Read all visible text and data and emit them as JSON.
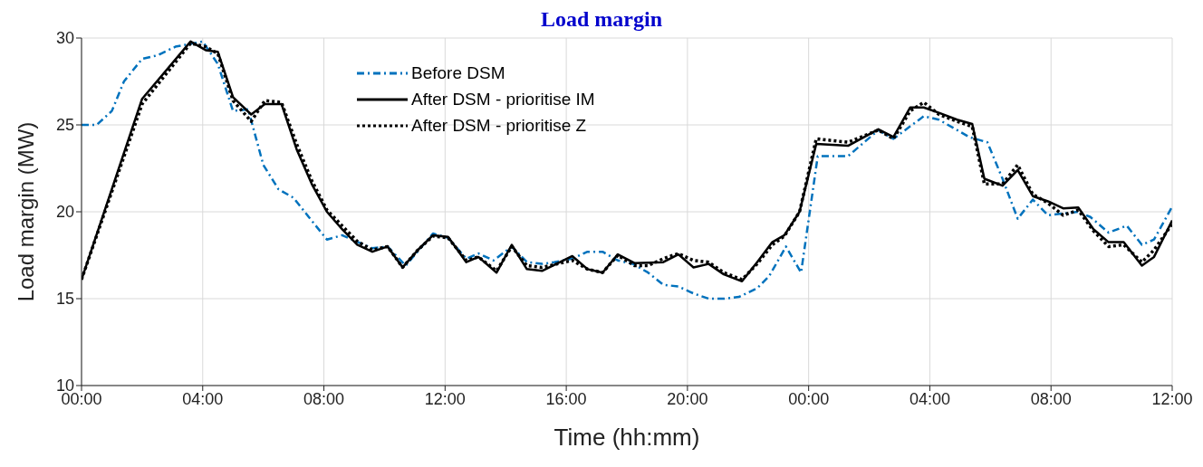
{
  "chart_data": {
    "type": "line",
    "title": "Load margin",
    "xlabel": "Time (hh:mm)",
    "ylabel": "Load margin (MW)",
    "xlim": [
      "--01-01T00:00",
      "--01-02T12:00"
    ],
    "xticks": [
      {
        "value": "--01-01T00:00",
        "label": "00:00"
      },
      {
        "value": "--01-01T04:00",
        "label": "04:00"
      },
      {
        "value": "--01-01T08:00",
        "label": "08:00"
      },
      {
        "value": "--01-01T12:00",
        "label": "12:00"
      },
      {
        "value": "--01-01T16:00",
        "label": "16:00"
      },
      {
        "value": "--01-01T20:00",
        "label": "20:00"
      },
      {
        "value": "--01-02T00:00",
        "label": "00:00"
      },
      {
        "value": "--01-02T04:00",
        "label": "04:00"
      },
      {
        "value": "--01-02T08:00",
        "label": "08:00"
      },
      {
        "value": "--01-02T12:00",
        "label": "12:00"
      }
    ],
    "ylim": [
      10,
      30
    ],
    "yticks": [
      10,
      15,
      20,
      25,
      30
    ],
    "grid": true,
    "legend": "top",
    "marker": "none",
    "series": [
      {
        "name": "Before DSM",
        "color": "#0072bd",
        "line_style": "dashed",
        "x": [
          "--01-01T00:00",
          "--01-01T00:30",
          "--01-01T01:00",
          "--01-01T01:24",
          "--01-01T02:00",
          "--01-01T02:30",
          "--01-01T03:06",
          "--01-01T04:00",
          "--01-01T04:30",
          "--01-01T05:00",
          "--01-01T05:30",
          "--01-01T06:00",
          "--01-01T06:30",
          "--01-01T07:00",
          "--01-01T07:30",
          "--01-01T08:06",
          "--01-01T08:36",
          "--01-01T09:12",
          "--01-01T09:36",
          "--01-01T10:06",
          "--01-01T10:42",
          "--01-01T11:36",
          "--01-01T12:06",
          "--01-01T12:42",
          "--01-01T13:06",
          "--01-01T13:36",
          "--01-01T14:12",
          "--01-01T14:42",
          "--01-01T15:12",
          "--01-01T15:36",
          "--01-01T16:12",
          "--01-01T16:42",
          "--01-01T17:12",
          "--01-01T17:42",
          "--01-01T18:12",
          "--01-01T18:42",
          "--01-01T19:12",
          "--01-01T19:42",
          "--01-01T20:12",
          "--01-01T20:42",
          "--01-01T21:12",
          "--01-01T21:42",
          "--01-01T22:18",
          "--01-01T22:42",
          "--01-01T23:15",
          "--01-01T23:45",
          "--01-02T00:18",
          "--01-02T01:18",
          "--01-02T02:18",
          "--01-02T02:48",
          "--01-02T03:48",
          "--01-02T04:18",
          "--01-02T05:18",
          "--01-02T05:54",
          "--01-02T06:24",
          "--01-02T06:54",
          "--01-02T07:24",
          "--01-02T07:54",
          "--01-02T08:54",
          "--01-02T09:18",
          "--01-02T09:54",
          "--01-02T10:30",
          "--01-02T11:00",
          "--01-02T11:24",
          "--01-02T12:00"
        ],
        "values": [
          25,
          25,
          25.8,
          27.5,
          28.8,
          29,
          29.5,
          29.8,
          28.5,
          25.8,
          25.9,
          22.7,
          21.3,
          20.8,
          19.7,
          18.4,
          18.65,
          18.2,
          17.9,
          18,
          16.9,
          18.75,
          18.5,
          17.3,
          17.6,
          17.2,
          18,
          17.1,
          17,
          17.1,
          17.3,
          17.7,
          17.7,
          17.2,
          17,
          16.5,
          15.8,
          15.7,
          15.3,
          15,
          15,
          15.1,
          15.6,
          16.3,
          18,
          16.5,
          23.2,
          23.2,
          24.7,
          24.2,
          25.5,
          25.3,
          24.3,
          24,
          21.9,
          19.6,
          20.7,
          19.8,
          20,
          19.7,
          18.8,
          19.2,
          18.1,
          18.4,
          20.3
        ]
      },
      {
        "name": "After DSM - prioritise IM",
        "color": "#000000",
        "line_style": "solid",
        "x": [
          "--01-01T00:00",
          "--01-01T02:00",
          "--01-01T03:36",
          "--01-01T04:06",
          "--01-01T04:30",
          "--01-01T05:00",
          "--01-01T05:36",
          "--01-01T06:03",
          "--01-01T06:36",
          "--01-01T07:06",
          "--01-01T07:36",
          "--01-01T08:06",
          "--01-01T08:36",
          "--01-01T09:06",
          "--01-01T09:36",
          "--01-01T10:06",
          "--01-01T10:36",
          "--01-01T11:06",
          "--01-01T11:36",
          "--01-01T12:06",
          "--01-01T12:42",
          "--01-01T13:06",
          "--01-01T13:42",
          "--01-01T14:12",
          "--01-01T14:42",
          "--01-01T15:12",
          "--01-01T16:12",
          "--01-01T16:42",
          "--01-01T17:12",
          "--01-01T17:42",
          "--01-01T18:15",
          "--01-01T19:12",
          "--01-01T19:42",
          "--01-01T20:12",
          "--01-01T20:42",
          "--01-01T21:12",
          "--01-01T21:48",
          "--01-01T22:18",
          "--01-01T22:48",
          "--01-01T23:12",
          "--01-01T23:42",
          "--01-02T00:15",
          "--01-02T01:18",
          "--01-02T02:18",
          "--01-02T02:48",
          "--01-02T03:21",
          "--01-02T03:48",
          "--01-02T04:18",
          "--01-02T04:54",
          "--01-02T05:24",
          "--01-02T05:48",
          "--01-02T06:24",
          "--01-02T06:54",
          "--01-02T07:24",
          "--01-02T07:54",
          "--01-02T08:24",
          "--01-02T08:54",
          "--01-02T09:24",
          "--01-02T09:54",
          "--01-02T10:24",
          "--01-02T11:00",
          "--01-02T11:24",
          "--01-02T12:00"
        ],
        "values": [
          16.1,
          26.5,
          29.8,
          29.3,
          29.2,
          26.6,
          25.6,
          26.2,
          26.2,
          23.6,
          21.6,
          20,
          19,
          18.1,
          17.7,
          18,
          16.8,
          17.8,
          18.65,
          18.55,
          17.1,
          17.4,
          16.5,
          18.1,
          16.7,
          16.6,
          17.45,
          16.7,
          16.5,
          17.55,
          17.05,
          17.1,
          17.55,
          16.8,
          17,
          16.4,
          16,
          17.1,
          18.25,
          18.65,
          20,
          23.9,
          23.8,
          24.75,
          24.3,
          26,
          26,
          25.7,
          25.3,
          25.05,
          21.9,
          21.5,
          22.4,
          20.9,
          20.6,
          20.2,
          20.25,
          19,
          18.25,
          18.25,
          16.9,
          17.4,
          19.5
        ]
      },
      {
        "name": "After DSM - prioritise Z",
        "color": "#000000",
        "line_style": "dotted",
        "x": [
          "--01-01T00:00",
          "--01-01T02:00",
          "--01-01T03:36",
          "--01-01T04:06",
          "--01-01T04:30",
          "--01-01T05:00",
          "--01-01T05:36",
          "--01-01T06:03",
          "--01-01T06:36",
          "--01-01T07:06",
          "--01-01T07:36",
          "--01-01T08:06",
          "--01-01T08:36",
          "--01-01T09:06",
          "--01-01T09:36",
          "--01-01T10:06",
          "--01-01T10:36",
          "--01-01T11:06",
          "--01-01T11:36",
          "--01-01T12:06",
          "--01-01T12:42",
          "--01-01T13:06",
          "--01-01T13:42",
          "--01-01T14:12",
          "--01-01T14:42",
          "--01-01T15:12",
          "--01-01T16:12",
          "--01-01T16:42",
          "--01-01T17:12",
          "--01-01T17:42",
          "--01-01T18:15",
          "--01-01T18:42",
          "--01-01T19:12",
          "--01-01T19:42",
          "--01-01T20:12",
          "--01-01T20:42",
          "--01-01T21:12",
          "--01-01T21:48",
          "--01-01T22:18",
          "--01-01T22:48",
          "--01-01T23:12",
          "--01-01T23:42",
          "--01-02T00:15",
          "--01-02T01:18",
          "--01-02T02:18",
          "--01-02T02:48",
          "--01-02T03:21",
          "--01-02T03:48",
          "--01-02T04:18",
          "--01-02T04:54",
          "--01-02T05:24",
          "--01-02T05:48",
          "--01-02T06:24",
          "--01-02T06:54",
          "--01-02T07:24",
          "--01-02T07:54",
          "--01-02T08:24",
          "--01-02T08:54",
          "--01-02T09:24",
          "--01-02T09:54",
          "--01-02T10:24",
          "--01-02T11:00",
          "--01-02T11:24",
          "--01-02T12:00"
        ],
        "values": [
          16.1,
          26.2,
          29.7,
          29.5,
          29.1,
          26.4,
          25.2,
          26.4,
          26.3,
          23.9,
          21.8,
          20.1,
          19.2,
          18.3,
          17.8,
          18,
          16.8,
          17.8,
          18.6,
          18.5,
          17.2,
          17.4,
          16.6,
          18,
          16.9,
          16.8,
          17.2,
          16.7,
          16.5,
          17.5,
          16.9,
          16.9,
          17.3,
          17.6,
          17.2,
          17.1,
          16.5,
          16.1,
          17,
          18.1,
          18.6,
          20,
          24.2,
          24,
          24.7,
          24.2,
          25.8,
          26.3,
          25.6,
          25.2,
          24.9,
          21.6,
          21.6,
          22.7,
          21,
          20.5,
          19.8,
          20.1,
          18.9,
          18,
          18.1,
          17.1,
          17.8,
          19.3
        ]
      }
    ]
  }
}
